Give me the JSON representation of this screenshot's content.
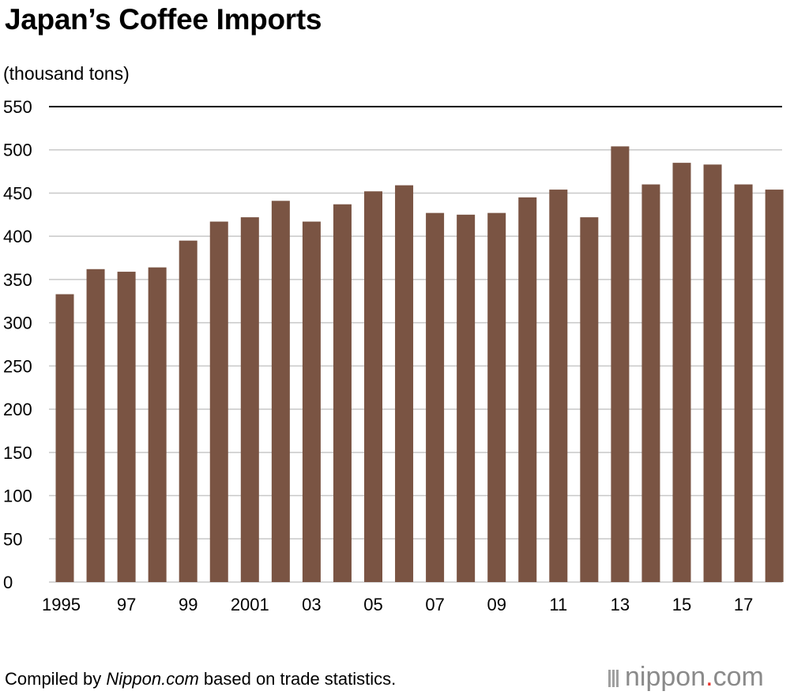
{
  "title": "Japan’s Coffee Imports",
  "unit_label": "(thousand tons)",
  "footer": {
    "prefix": "Compiled by ",
    "source": "Nippon.com",
    "suffix": " based on trade statistics."
  },
  "logo": {
    "name": "nippon",
    "dot": ".",
    "tld": "com"
  },
  "colors": {
    "bar": "#7a5443",
    "grid": "#c8c8c8",
    "top_line": "#000000"
  },
  "chart_data": {
    "type": "bar",
    "categories": [
      "1995",
      "1996",
      "1997",
      "1998",
      "1999",
      "2000",
      "2001",
      "2002",
      "2003",
      "2004",
      "2005",
      "2006",
      "2007",
      "2008",
      "2009",
      "2010",
      "2011",
      "2012",
      "2013",
      "2014",
      "2015",
      "2016",
      "2017",
      "2018"
    ],
    "values": [
      333,
      362,
      359,
      364,
      395,
      417,
      422,
      441,
      417,
      437,
      452,
      459,
      427,
      425,
      427,
      445,
      454,
      422,
      504,
      460,
      485,
      483,
      460,
      454
    ],
    "tick_labels": [
      "1995",
      "",
      "97",
      "",
      "99",
      "",
      "2001",
      "",
      "03",
      "",
      "05",
      "",
      "07",
      "",
      "09",
      "",
      "11",
      "",
      "13",
      "",
      "15",
      "",
      "17",
      ""
    ],
    "yticks": [
      0,
      50,
      100,
      150,
      200,
      250,
      300,
      350,
      400,
      450,
      500,
      550
    ],
    "ylim": [
      0,
      550
    ],
    "grid": true,
    "title": "Japan’s Coffee Imports",
    "ylabel": "(thousand tons)",
    "xlabel": ""
  }
}
